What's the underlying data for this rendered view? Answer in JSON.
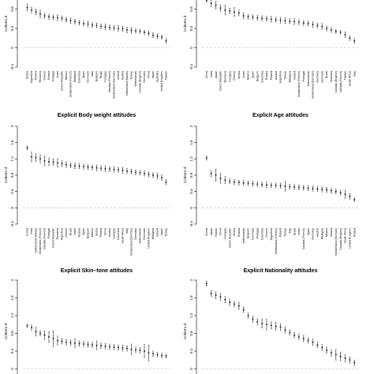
{
  "chart_data": [
    {
      "type": "scatter",
      "title": "",
      "ylabel": "Cohen's d",
      "ylim": [
        -0.4,
        1.2
      ],
      "yticks": [
        "-0.4",
        "0",
        "0.4",
        "0.8",
        "1.2"
      ],
      "baseline": 0,
      "categories": [
        "Serbia",
        "Argentina",
        "Poland",
        "Romania",
        "Greece",
        "Russia",
        "Portugal",
        "Israel",
        "Czech Republic",
        "Mexico",
        "Switzerland (French)",
        "Malaysia",
        "Colombia",
        "Spain",
        "Denmark",
        "Italy",
        "Belgium",
        "Brazil",
        "Hungary",
        "Canada (French)",
        "Switzerland (German)",
        "Ireland",
        "Austria",
        "Switzerland (Italian)",
        "Turkey",
        "Netherlands",
        "Canada (English)",
        "Germany",
        "China",
        "Japan",
        "Australia",
        "United Kingdom",
        "Taiwan"
      ],
      "values": [
        0.83,
        0.78,
        0.74,
        0.7,
        0.66,
        0.64,
        0.63,
        0.62,
        0.61,
        0.58,
        0.56,
        0.54,
        0.52,
        0.5,
        0.49,
        0.47,
        0.46,
        0.44,
        0.43,
        0.42,
        0.41,
        0.4,
        0.39,
        0.37,
        0.36,
        0.35,
        0.34,
        0.32,
        0.3,
        0.26,
        0.24,
        0.22,
        0.14
      ],
      "errors": [
        0.07,
        0.06,
        0.06,
        0.08,
        0.05,
        0.05,
        0.05,
        0.06,
        0.05,
        0.05,
        0.06,
        0.05,
        0.05,
        0.05,
        0.06,
        0.05,
        0.05,
        0.05,
        0.06,
        0.05,
        0.05,
        0.06,
        0.05,
        0.06,
        0.06,
        0.04,
        0.04,
        0.04,
        0.05,
        0.05,
        0.05,
        0.04,
        0.05
      ]
    },
    {
      "type": "scatter",
      "title": "",
      "ylabel": "Cohen's d",
      "ylim": [
        -0.4,
        1.2
      ],
      "yticks": [
        "-0.4",
        "0",
        "0.4",
        "0.8",
        "1.2"
      ],
      "baseline": 0,
      "categories": [
        "China",
        "India",
        "Japan",
        "Czech Republic",
        "Romania",
        "Hungary",
        "Greece",
        "Serbia",
        "Israel",
        "Mexico",
        "Spain",
        "Belgium",
        "Colombia",
        "Russia",
        "Poland",
        "Austria",
        "Argentina",
        "Turkey",
        "Malaysia",
        "Ireland",
        "Switzerland (French)",
        "Portugal",
        "Netherlands",
        "Switzerland (German)",
        "Germany",
        "Denmark",
        "Brazil",
        "Australia",
        "Canada (English)",
        "Canada (French)",
        "Taiwan",
        "South Africa",
        "Italy"
      ],
      "values": [
        0.98,
        0.92,
        0.88,
        0.82,
        0.78,
        0.76,
        0.74,
        0.72,
        0.66,
        0.64,
        0.63,
        0.62,
        0.61,
        0.6,
        0.59,
        0.58,
        0.57,
        0.56,
        0.55,
        0.54,
        0.53,
        0.51,
        0.5,
        0.48,
        0.46,
        0.44,
        0.4,
        0.37,
        0.34,
        0.32,
        0.27,
        0.2,
        0.14
      ],
      "errors": [
        0.04,
        0.07,
        0.08,
        0.07,
        0.1,
        0.06,
        0.09,
        0.06,
        0.06,
        0.05,
        0.05,
        0.05,
        0.05,
        0.05,
        0.06,
        0.05,
        0.06,
        0.06,
        0.05,
        0.06,
        0.05,
        0.05,
        0.05,
        0.06,
        0.05,
        0.06,
        0.05,
        0.05,
        0.04,
        0.04,
        0.06,
        0.05,
        0.05
      ]
    },
    {
      "type": "scatter",
      "title": "Explicit Body weight attitudes",
      "ylabel": "Cohen's d",
      "ylim": [
        -0.4,
        2.0
      ],
      "yticks": [
        "-0.4",
        "0",
        "0.4",
        "0.8",
        "1.2",
        "1.6",
        "2"
      ],
      "baseline": 0,
      "categories": [
        "Korea",
        "India",
        "Switzerland (Italian)",
        "Switzerland (French)",
        "Canada (French)",
        "Portugal",
        "Czech Republic",
        "Romania",
        "Argentina",
        "Greece",
        "Brazil",
        "Israel",
        "Russia",
        "Spain",
        "Belgium",
        "Mexico",
        "Serbia",
        "Poland",
        "China",
        "Austria",
        "Hungary",
        "Colombia",
        "South Africa",
        "Italy",
        "Switzerland (German)",
        "Germany",
        "Netherlands",
        "Denmark",
        "United Kingdom",
        "Malaysia",
        "Ireland",
        "Japan",
        "Turkey"
      ],
      "values": [
        1.47,
        1.25,
        1.23,
        1.2,
        1.15,
        1.13,
        1.12,
        1.1,
        1.08,
        1.06,
        1.04,
        1.03,
        1.02,
        1.01,
        1.0,
        0.99,
        0.98,
        0.97,
        0.96,
        0.95,
        0.94,
        0.93,
        0.92,
        0.9,
        0.89,
        0.87,
        0.86,
        0.84,
        0.82,
        0.8,
        0.78,
        0.74,
        0.63
      ],
      "errors": [
        0.05,
        0.12,
        0.1,
        0.1,
        0.12,
        0.09,
        0.08,
        0.1,
        0.07,
        0.07,
        0.06,
        0.07,
        0.06,
        0.06,
        0.06,
        0.06,
        0.07,
        0.06,
        0.07,
        0.06,
        0.07,
        0.06,
        0.07,
        0.06,
        0.06,
        0.06,
        0.06,
        0.06,
        0.06,
        0.06,
        0.07,
        0.07,
        0.06
      ]
    },
    {
      "type": "scatter",
      "title": "Explicit Age attitudes",
      "ylabel": "Cohen's d",
      "ylim": [
        -0.4,
        2.0
      ],
      "yticks": [
        "-0.4",
        "0",
        "0.4",
        "0.8",
        "1.2",
        "1.6",
        "2"
      ],
      "baseline": 0,
      "categories": [
        "Korea",
        "Japan",
        "Taiwan",
        "China",
        "Hungary",
        "Czech Republic",
        "Serbia",
        "Russia",
        "Netherlands",
        "Belgium",
        "Denmark",
        "Portugal",
        "Colombia",
        "Greece",
        "Argentina",
        "Switzerland (French)",
        "Poland",
        "Turkey",
        "Italy",
        "Brazil",
        "Israel",
        "Canada (French)",
        "Spain",
        "Germany",
        "Austria",
        "Malaysia",
        "Mexico",
        "Ireland",
        "Switzerland (German)",
        "Canada (English)",
        "South Africa",
        "United Kingdom",
        "Poland"
      ],
      "values": [
        1.22,
        0.84,
        0.8,
        0.72,
        0.68,
        0.65,
        0.63,
        0.62,
        0.61,
        0.6,
        0.59,
        0.58,
        0.57,
        0.56,
        0.55,
        0.55,
        0.54,
        0.53,
        0.52,
        0.51,
        0.5,
        0.49,
        0.48,
        0.47,
        0.46,
        0.45,
        0.44,
        0.42,
        0.4,
        0.37,
        0.33,
        0.28,
        0.2
      ],
      "errors": [
        0.05,
        0.08,
        0.15,
        0.12,
        0.09,
        0.06,
        0.06,
        0.06,
        0.06,
        0.06,
        0.06,
        0.06,
        0.06,
        0.07,
        0.06,
        0.06,
        0.06,
        0.12,
        0.06,
        0.06,
        0.06,
        0.06,
        0.06,
        0.06,
        0.06,
        0.06,
        0.06,
        0.06,
        0.06,
        0.06,
        0.1,
        0.07,
        0.04
      ]
    },
    {
      "type": "scatter",
      "title": "Explicit Skin–tone attitudes",
      "ylabel": "Cohen's d",
      "ylim": [
        -0.4,
        2.0
      ],
      "yticks": [
        "-0.4",
        "0",
        "0.4",
        "0.8",
        "1.2",
        "1.6",
        "2"
      ],
      "baseline": 0,
      "categories": [],
      "values": [
        0.97,
        0.93,
        0.84,
        0.8,
        0.76,
        0.72,
        0.68,
        0.64,
        0.62,
        0.6,
        0.59,
        0.58,
        0.57,
        0.56,
        0.55,
        0.54,
        0.53,
        0.52,
        0.51,
        0.5,
        0.49,
        0.48,
        0.47,
        0.46,
        0.44,
        0.43,
        0.42,
        0.4,
        0.36,
        0.34,
        0.32,
        0.3,
        0.29
      ],
      "errors": [
        0.04,
        0.06,
        0.1,
        0.06,
        0.1,
        0.12,
        0.18,
        0.1,
        0.06,
        0.06,
        0.06,
        0.1,
        0.06,
        0.06,
        0.06,
        0.06,
        0.1,
        0.06,
        0.06,
        0.06,
        0.06,
        0.06,
        0.07,
        0.06,
        0.12,
        0.06,
        0.06,
        0.15,
        0.18,
        0.06,
        0.05,
        0.05,
        0.04
      ]
    },
    {
      "type": "scatter",
      "title": "Explicit Nationality attitudes",
      "ylabel": "Cohen's d",
      "ylim": [
        -0.4,
        2.0
      ],
      "yticks": [
        "-0.4",
        "0",
        "0.4",
        "0.8",
        "1.2",
        "1.6",
        "2"
      ],
      "baseline": 0,
      "categories": [],
      "values": [
        1.92,
        1.7,
        1.66,
        1.62,
        1.56,
        1.5,
        1.46,
        1.42,
        1.33,
        1.2,
        1.12,
        1.06,
        1.02,
        1.0,
        0.98,
        0.96,
        0.94,
        0.88,
        0.82,
        0.76,
        0.72,
        0.68,
        0.64,
        0.6,
        0.54,
        0.48,
        0.42,
        0.36,
        0.32,
        0.28,
        0.24,
        0.2,
        0.14
      ],
      "errors": [
        0.06,
        0.07,
        0.08,
        0.08,
        0.07,
        0.07,
        0.06,
        0.08,
        0.06,
        0.06,
        0.07,
        0.07,
        0.1,
        0.12,
        0.08,
        0.09,
        0.08,
        0.07,
        0.06,
        0.06,
        0.06,
        0.07,
        0.06,
        0.07,
        0.06,
        0.07,
        0.07,
        0.07,
        0.12,
        0.1,
        0.08,
        0.07,
        0.06
      ]
    }
  ]
}
